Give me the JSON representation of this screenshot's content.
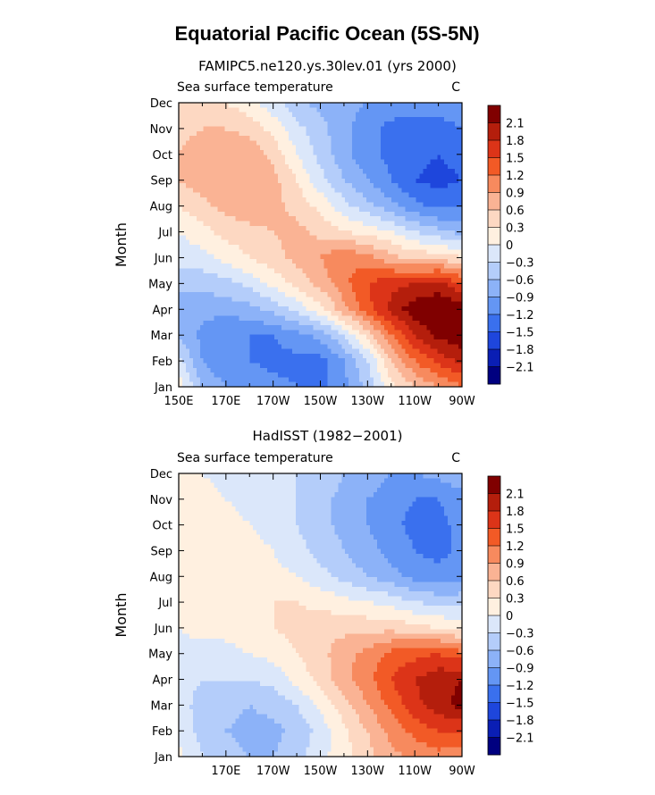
{
  "figure": {
    "title": "Equatorial Pacific Ocean (5S-5N)"
  },
  "colorbar": {
    "levels": [
      "2.1",
      "1.8",
      "1.5",
      "1.2",
      "0.9",
      "0.6",
      "0.3",
      "0",
      "−0.3",
      "−0.6",
      "−0.9",
      "−1.2",
      "−1.5",
      "−1.8",
      "−2.1"
    ],
    "colors": [
      "#800000",
      "#b41e0c",
      "#dc3418",
      "#f25a26",
      "#f78a5e",
      "#fab394",
      "#fdd8c2",
      "#fff0e0",
      "#dbe7fa",
      "#b4cdfa",
      "#8cb2f8",
      "#6496f4",
      "#3a70ee",
      "#1e46dc",
      "#0a1eb4",
      "#000080"
    ]
  },
  "chart_data": [
    {
      "type": "heatmap",
      "title": "FAMIPC5.ne120.ys.30lev.01 (yrs 2000)",
      "variable_label": "Sea surface temperature",
      "units": "C",
      "xlabel": "",
      "ylabel": "Month",
      "x_tick_labels": [
        "150E",
        "170E",
        "170W",
        "150W",
        "130W",
        "110W",
        "90W"
      ],
      "y_tick_labels": [
        "Jan",
        "Feb",
        "Mar",
        "Apr",
        "May",
        "Jun",
        "Jul",
        "Aug",
        "Sep",
        "Oct",
        "Nov",
        "Dec"
      ],
      "x_range_deg_east": [
        150,
        270
      ],
      "months": [
        "Jan",
        "Feb",
        "Mar",
        "Apr",
        "May",
        "Jun",
        "Jul",
        "Aug",
        "Sep",
        "Oct",
        "Nov",
        "Dec"
      ],
      "lon_deg_east": [
        150,
        160,
        170,
        180,
        190,
        200,
        210,
        220,
        230,
        240,
        250,
        260,
        270
      ],
      "values": [
        [
          0.2,
          -0.6,
          -0.9,
          -0.9,
          -1.1,
          -1.2,
          -1.3,
          -1.0,
          -0.5,
          0.2,
          0.6,
          0.9,
          1.2
        ],
        [
          -0.2,
          -0.9,
          -1.2,
          -1.2,
          -1.3,
          -1.3,
          -1.3,
          -0.9,
          -0.3,
          0.6,
          1.2,
          1.6,
          1.9
        ],
        [
          -0.6,
          -1.0,
          -1.2,
          -1.2,
          -1.2,
          -1.0,
          -0.8,
          -0.3,
          0.4,
          1.2,
          1.8,
          2.2,
          2.3
        ],
        [
          -0.8,
          -0.8,
          -0.8,
          -0.7,
          -0.5,
          -0.2,
          0.2,
          0.8,
          1.4,
          1.9,
          2.3,
          2.4,
          2.3
        ],
        [
          -0.5,
          -0.5,
          -0.4,
          -0.2,
          0.1,
          0.4,
          0.7,
          1.1,
          1.5,
          1.7,
          1.8,
          1.9,
          1.5
        ],
        [
          -0.2,
          -0.1,
          0.1,
          0.3,
          0.5,
          0.7,
          0.9,
          1.2,
          1.0,
          0.7,
          0.5,
          0.5,
          0.3
        ],
        [
          0.0,
          0.2,
          0.4,
          0.5,
          0.6,
          0.7,
          0.5,
          0.3,
          0.2,
          0.0,
          -0.3,
          -0.5,
          -0.7
        ],
        [
          0.3,
          0.5,
          0.7,
          0.8,
          0.7,
          0.5,
          0.2,
          -0.2,
          -0.5,
          -0.8,
          -1.1,
          -1.3,
          -1.2
        ],
        [
          0.6,
          0.8,
          0.9,
          0.9,
          0.7,
          0.3,
          -0.2,
          -0.6,
          -0.9,
          -1.2,
          -1.5,
          -1.6,
          -1.5
        ],
        [
          0.6,
          0.8,
          0.9,
          0.8,
          0.5,
          0.0,
          -0.4,
          -0.8,
          -1.1,
          -1.3,
          -1.4,
          -1.5,
          -1.4
        ],
        [
          0.5,
          0.6,
          0.6,
          0.5,
          0.2,
          -0.2,
          -0.5,
          -0.8,
          -1.1,
          -1.3,
          -1.3,
          -1.3,
          -1.2
        ],
        [
          0.3,
          0.4,
          0.3,
          0.1,
          -0.2,
          -0.5,
          -0.7,
          -0.8,
          -0.9,
          -1.0,
          -1.1,
          -1.1,
          -1.0
        ]
      ]
    },
    {
      "type": "heatmap",
      "title": "HadISST (1982−2001)",
      "variable_label": "Sea surface temperature",
      "units": "C",
      "xlabel": "",
      "ylabel": "Month",
      "x_tick_labels": [
        "170E",
        "170W",
        "150W",
        "130W",
        "110W",
        "90W"
      ],
      "y_tick_labels": [
        "Jan",
        "Feb",
        "Mar",
        "Apr",
        "May",
        "Jun",
        "Jul",
        "Aug",
        "Sep",
        "Oct",
        "Nov",
        "Dec"
      ],
      "x_range_deg_east": [
        150,
        270
      ],
      "months": [
        "Jan",
        "Feb",
        "Mar",
        "Apr",
        "May",
        "Jun",
        "Jul",
        "Aug",
        "Sep",
        "Oct",
        "Nov",
        "Dec"
      ],
      "lon_deg_east": [
        150,
        160,
        170,
        180,
        190,
        200,
        210,
        220,
        230,
        240,
        250,
        260,
        270
      ],
      "values": [
        [
          0.1,
          -0.3,
          -0.5,
          -0.6,
          -0.6,
          -0.4,
          -0.1,
          0.2,
          0.5,
          0.8,
          1.0,
          1.1,
          1.0
        ],
        [
          -0.1,
          -0.4,
          -0.6,
          -0.7,
          -0.7,
          -0.5,
          -0.2,
          0.2,
          0.6,
          1.0,
          1.3,
          1.5,
          1.5
        ],
        [
          -0.2,
          -0.4,
          -0.5,
          -0.6,
          -0.5,
          -0.3,
          0.1,
          0.5,
          0.9,
          1.3,
          1.7,
          2.0,
          2.2
        ],
        [
          -0.2,
          -0.3,
          -0.3,
          -0.3,
          -0.2,
          0.1,
          0.4,
          0.8,
          1.1,
          1.5,
          1.8,
          2.0,
          2.1
        ],
        [
          -0.1,
          -0.1,
          -0.1,
          0.0,
          0.1,
          0.3,
          0.5,
          0.8,
          1.0,
          1.3,
          1.4,
          1.5,
          1.3
        ],
        [
          0.0,
          0.1,
          0.1,
          0.2,
          0.3,
          0.4,
          0.5,
          0.5,
          0.5,
          0.5,
          0.4,
          0.3,
          0.2
        ],
        [
          0.1,
          0.2,
          0.2,
          0.3,
          0.3,
          0.3,
          0.2,
          0.1,
          0.0,
          -0.1,
          -0.3,
          -0.4,
          -0.4
        ],
        [
          0.1,
          0.2,
          0.2,
          0.2,
          0.1,
          0.0,
          -0.2,
          -0.4,
          -0.6,
          -0.8,
          -1.0,
          -1.1,
          -1.0
        ],
        [
          0.1,
          0.2,
          0.2,
          0.1,
          0.0,
          -0.2,
          -0.4,
          -0.6,
          -0.8,
          -1.0,
          -1.2,
          -1.3,
          -1.1
        ],
        [
          0.1,
          0.1,
          0.1,
          0.0,
          -0.1,
          -0.3,
          -0.5,
          -0.7,
          -0.9,
          -1.1,
          -1.3,
          -1.3,
          -1.1
        ],
        [
          0.1,
          0.1,
          0.0,
          -0.1,
          -0.2,
          -0.3,
          -0.5,
          -0.7,
          -0.9,
          -1.1,
          -1.2,
          -1.2,
          -1.0
        ],
        [
          0.1,
          0.0,
          -0.1,
          -0.1,
          -0.2,
          -0.3,
          -0.4,
          -0.6,
          -0.7,
          -0.9,
          -0.9,
          -0.8,
          -0.7
        ]
      ]
    }
  ]
}
